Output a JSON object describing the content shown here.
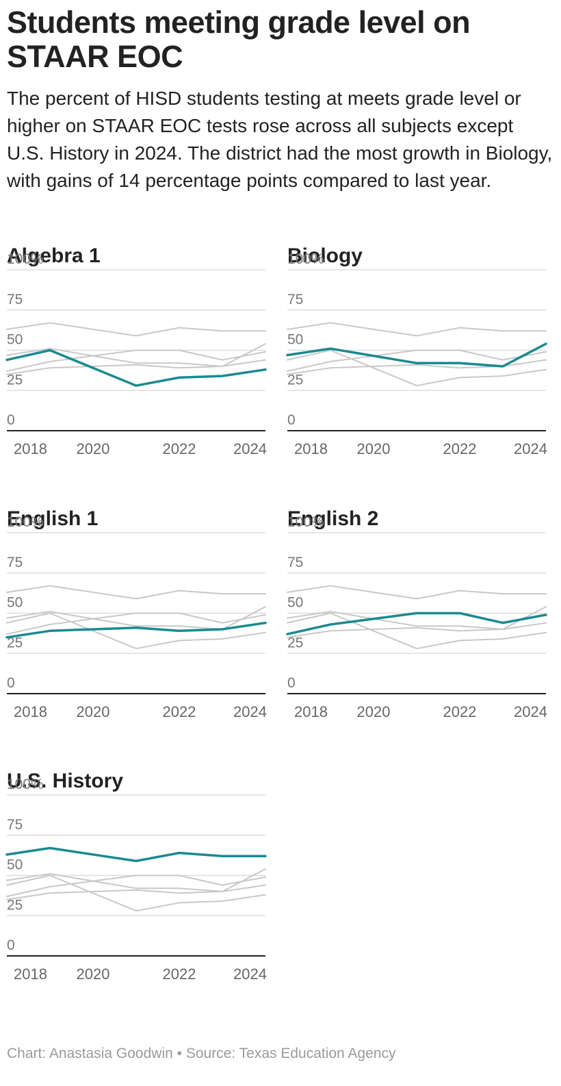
{
  "title": "Students meeting grade level on STAAR EOC",
  "subtitle": "The percent of HISD students testing at meets grade level or higher on STAAR EOC tests rose across all subjects except U.S. History in 2024. The district had the most growth in Biology, with gains of 14 percentage points compared to last year.",
  "credit": "Chart: Anastasia Goodwin • Source: Texas Education Agency",
  "colors": {
    "highlight": "#1a8a8f",
    "context": "#c8c8c8",
    "grid": "#dddddd",
    "axis": "#222222"
  },
  "chart_data": [
    {
      "type": "line",
      "title": "Algebra 1",
      "x": [
        2018,
        2019,
        2021,
        2022,
        2023,
        2024
      ],
      "xticks": [
        "2018",
        "2020",
        "2022",
        "2024"
      ],
      "yticks": [
        "0",
        "25",
        "50",
        "75",
        "100%"
      ],
      "ylim": [
        0,
        100
      ],
      "highlight": "Algebra 1",
      "series": [
        {
          "name": "Algebra 1",
          "values": [
            44,
            50,
            28,
            33,
            34,
            38
          ]
        },
        {
          "name": "Biology",
          "values": [
            47,
            51,
            42,
            42,
            40,
            54
          ]
        },
        {
          "name": "English 1",
          "values": [
            35,
            39,
            41,
            39,
            40,
            44
          ]
        },
        {
          "name": "English 2",
          "values": [
            37,
            43,
            50,
            50,
            44,
            49
          ]
        },
        {
          "name": "U.S. History",
          "values": [
            63,
            67,
            59,
            64,
            62,
            62
          ]
        }
      ]
    },
    {
      "type": "line",
      "title": "Biology",
      "x": [
        2018,
        2019,
        2021,
        2022,
        2023,
        2024
      ],
      "xticks": [
        "2018",
        "2020",
        "2022",
        "2024"
      ],
      "yticks": [
        "0",
        "25",
        "50",
        "75",
        "100%"
      ],
      "ylim": [
        0,
        100
      ],
      "highlight": "Biology",
      "series": [
        {
          "name": "Algebra 1",
          "values": [
            44,
            50,
            28,
            33,
            34,
            38
          ]
        },
        {
          "name": "Biology",
          "values": [
            47,
            51,
            42,
            42,
            40,
            54
          ]
        },
        {
          "name": "English 1",
          "values": [
            35,
            39,
            41,
            39,
            40,
            44
          ]
        },
        {
          "name": "English 2",
          "values": [
            37,
            43,
            50,
            50,
            44,
            49
          ]
        },
        {
          "name": "U.S. History",
          "values": [
            63,
            67,
            59,
            64,
            62,
            62
          ]
        }
      ]
    },
    {
      "type": "line",
      "title": "English 1",
      "x": [
        2018,
        2019,
        2021,
        2022,
        2023,
        2024
      ],
      "xticks": [
        "2018",
        "2020",
        "2022",
        "2024"
      ],
      "yticks": [
        "0",
        "25",
        "50",
        "75",
        "100%"
      ],
      "ylim": [
        0,
        100
      ],
      "highlight": "English 1",
      "series": [
        {
          "name": "Algebra 1",
          "values": [
            44,
            50,
            28,
            33,
            34,
            38
          ]
        },
        {
          "name": "Biology",
          "values": [
            47,
            51,
            42,
            42,
            40,
            54
          ]
        },
        {
          "name": "English 1",
          "values": [
            35,
            39,
            41,
            39,
            40,
            44
          ]
        },
        {
          "name": "English 2",
          "values": [
            37,
            43,
            50,
            50,
            44,
            49
          ]
        },
        {
          "name": "U.S. History",
          "values": [
            63,
            67,
            59,
            64,
            62,
            62
          ]
        }
      ]
    },
    {
      "type": "line",
      "title": "English 2",
      "x": [
        2018,
        2019,
        2021,
        2022,
        2023,
        2024
      ],
      "xticks": [
        "2018",
        "2020",
        "2022",
        "2024"
      ],
      "yticks": [
        "0",
        "25",
        "50",
        "75",
        "100%"
      ],
      "ylim": [
        0,
        100
      ],
      "highlight": "English 2",
      "series": [
        {
          "name": "Algebra 1",
          "values": [
            44,
            50,
            28,
            33,
            34,
            38
          ]
        },
        {
          "name": "Biology",
          "values": [
            47,
            51,
            42,
            42,
            40,
            54
          ]
        },
        {
          "name": "English 1",
          "values": [
            35,
            39,
            41,
            39,
            40,
            44
          ]
        },
        {
          "name": "English 2",
          "values": [
            37,
            43,
            50,
            50,
            44,
            49
          ]
        },
        {
          "name": "U.S. History",
          "values": [
            63,
            67,
            59,
            64,
            62,
            62
          ]
        }
      ]
    },
    {
      "type": "line",
      "title": "U.S. History",
      "x": [
        2018,
        2019,
        2021,
        2022,
        2023,
        2024
      ],
      "xticks": [
        "2018",
        "2020",
        "2022",
        "2024"
      ],
      "yticks": [
        "0",
        "25",
        "50",
        "75",
        "100%"
      ],
      "ylim": [
        0,
        100
      ],
      "highlight": "U.S. History",
      "series": [
        {
          "name": "Algebra 1",
          "values": [
            44,
            50,
            28,
            33,
            34,
            38
          ]
        },
        {
          "name": "Biology",
          "values": [
            47,
            51,
            42,
            42,
            40,
            54
          ]
        },
        {
          "name": "English 1",
          "values": [
            35,
            39,
            41,
            39,
            40,
            44
          ]
        },
        {
          "name": "English 2",
          "values": [
            37,
            43,
            50,
            50,
            44,
            49
          ]
        },
        {
          "name": "U.S. History",
          "values": [
            63,
            67,
            59,
            64,
            62,
            62
          ]
        }
      ]
    }
  ]
}
